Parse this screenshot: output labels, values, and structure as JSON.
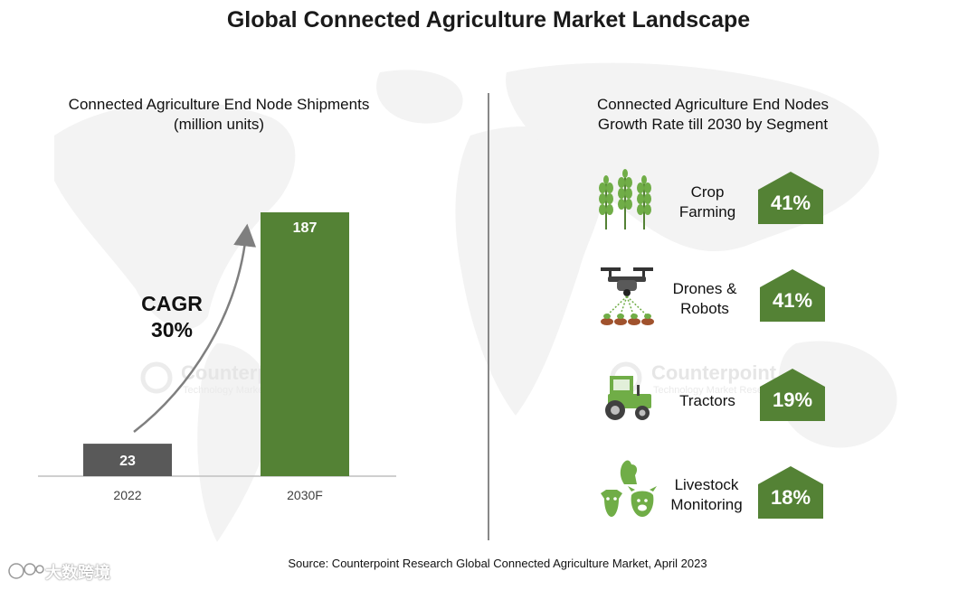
{
  "title": "Global Connected Agriculture Market Landscape",
  "left_panel": {
    "subtitle_line1": "Connected Agriculture End Node Shipments",
    "subtitle_line2": "(million units)",
    "cagr_line1": "CAGR",
    "cagr_line2": "30%"
  },
  "right_panel": {
    "subtitle_line1": "Connected Agriculture End Nodes",
    "subtitle_line2": "Growth Rate till 2030 by Segment",
    "segments": [
      {
        "label_line1": "Crop",
        "label_line2": "Farming",
        "value": "41%",
        "icon": "wheat-icon"
      },
      {
        "label_line1": "Drones &",
        "label_line2": "Robots",
        "value": "41%",
        "icon": "drone-icon"
      },
      {
        "label_line1": "Tractors",
        "label_line2": "",
        "value": "19%",
        "icon": "tractor-icon"
      },
      {
        "label_line1": "Livestock",
        "label_line2": "Monitoring",
        "value": "18%",
        "icon": "livestock-icon"
      }
    ]
  },
  "chart_data": [
    {
      "type": "bar",
      "title": "Connected Agriculture End Node Shipments (million units)",
      "categories": [
        "2022",
        "2030F"
      ],
      "values": [
        23,
        187
      ],
      "data_labels": [
        "23",
        "187"
      ],
      "annotation": "CAGR 30%",
      "colors": [
        "#595959",
        "#548235"
      ],
      "grid": false,
      "legend": "none"
    },
    {
      "type": "table",
      "title": "Connected Agriculture End Nodes Growth Rate till 2030 by Segment",
      "categories": [
        "Crop Farming",
        "Drones & Robots",
        "Tractors",
        "Livestock Monitoring"
      ],
      "values": [
        41,
        41,
        19,
        18
      ],
      "unit": "%"
    }
  ],
  "watermark": {
    "brand": "Counterpoint",
    "tagline": "Technology Market Research"
  },
  "source": "Source: Counterpoint Research Global Connected Agriculture Market, April 2023",
  "corner_logo": "大数跨境",
  "colors": {
    "green": "#548235",
    "gray_bar": "#595959",
    "axis": "#bfbfbf",
    "map": "#f2f2f2"
  }
}
